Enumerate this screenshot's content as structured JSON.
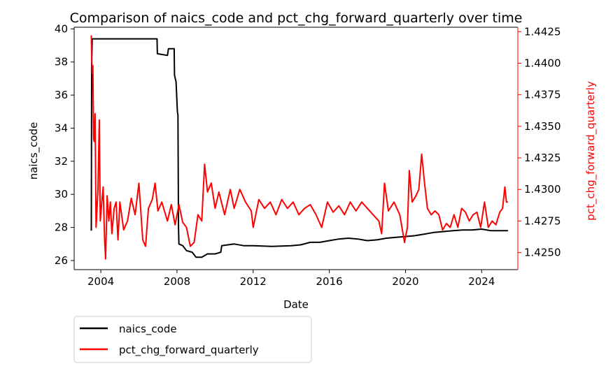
{
  "chart_data": {
    "type": "line",
    "title": "Comparison of naics_code and pct_chg_forward_quarterly over time",
    "xlabel": "Date",
    "ylabel": "naics_code",
    "y2label": "pct_chg_forward_quarterly",
    "xlim": [
      2002.6,
      2025.9
    ],
    "ylim": [
      25.45,
      40.1
    ],
    "y2lim": [
      1.42365,
      1.44285
    ],
    "x_ticks": [
      2004,
      2008,
      2012,
      2016,
      2020,
      2024
    ],
    "x_tick_labels": [
      "2004",
      "2008",
      "2012",
      "2016",
      "2020",
      "2024"
    ],
    "y_ticks": [
      26,
      28,
      30,
      32,
      34,
      36,
      38,
      40
    ],
    "y_tick_labels": [
      "26",
      "28",
      "30",
      "32",
      "34",
      "36",
      "38",
      "40"
    ],
    "y2_ticks": [
      1.425,
      1.4275,
      1.43,
      1.4325,
      1.435,
      1.4375,
      1.44,
      1.4425
    ],
    "y2_tick_labels": [
      "1.4250",
      "1.4275",
      "1.4300",
      "1.4325",
      "1.4350",
      "1.4375",
      "1.4400",
      "1.4425"
    ],
    "grid": false,
    "legend_position": "below-left",
    "series": [
      {
        "name": "naics_code",
        "color": "#000000",
        "axis": "left",
        "points": [
          [
            2003.5,
            27.8
          ],
          [
            2003.52,
            37.8
          ],
          [
            2003.55,
            39.4
          ],
          [
            2006.95,
            39.4
          ],
          [
            2006.97,
            38.5
          ],
          [
            2007.5,
            38.4
          ],
          [
            2007.55,
            38.8
          ],
          [
            2007.85,
            38.8
          ],
          [
            2007.87,
            37.2
          ],
          [
            2007.95,
            36.8
          ],
          [
            2008.02,
            35.0
          ],
          [
            2008.05,
            34.8
          ],
          [
            2008.08,
            28.0
          ],
          [
            2008.1,
            27.0
          ],
          [
            2008.3,
            26.9
          ],
          [
            2008.5,
            26.6
          ],
          [
            2008.8,
            26.5
          ],
          [
            2009.0,
            26.2
          ],
          [
            2009.3,
            26.2
          ],
          [
            2009.6,
            26.4
          ],
          [
            2010.0,
            26.4
          ],
          [
            2010.3,
            26.5
          ],
          [
            2010.35,
            26.9
          ],
          [
            2011.0,
            27.0
          ],
          [
            2011.5,
            26.9
          ],
          [
            2012.0,
            26.9
          ],
          [
            2013.0,
            26.85
          ],
          [
            2014.0,
            26.9
          ],
          [
            2014.5,
            26.95
          ],
          [
            2015.0,
            27.1
          ],
          [
            2015.5,
            27.1
          ],
          [
            2016.0,
            27.2
          ],
          [
            2016.5,
            27.3
          ],
          [
            2017.0,
            27.35
          ],
          [
            2017.5,
            27.3
          ],
          [
            2018.0,
            27.2
          ],
          [
            2018.5,
            27.25
          ],
          [
            2019.0,
            27.35
          ],
          [
            2019.5,
            27.4
          ],
          [
            2020.0,
            27.45
          ],
          [
            2020.5,
            27.5
          ],
          [
            2021.0,
            27.6
          ],
          [
            2021.5,
            27.7
          ],
          [
            2022.0,
            27.75
          ],
          [
            2022.5,
            27.8
          ],
          [
            2023.0,
            27.85
          ],
          [
            2023.5,
            27.85
          ],
          [
            2024.0,
            27.9
          ],
          [
            2024.5,
            27.8
          ],
          [
            2025.0,
            27.8
          ],
          [
            2025.38,
            27.8
          ]
        ]
      },
      {
        "name": "pct_chg_forward_quarterly",
        "color": "#ff0000",
        "axis": "right",
        "points": [
          [
            2003.5,
            1.4422
          ],
          [
            2003.52,
            1.4405
          ],
          [
            2003.55,
            1.4392
          ],
          [
            2003.58,
            1.4398
          ],
          [
            2003.62,
            1.434
          ],
          [
            2003.65,
            1.4338
          ],
          [
            2003.7,
            1.436
          ],
          [
            2003.75,
            1.427
          ],
          [
            2003.85,
            1.43
          ],
          [
            2003.92,
            1.4355
          ],
          [
            2003.97,
            1.4275
          ],
          [
            2004.05,
            1.429
          ],
          [
            2004.12,
            1.4302
          ],
          [
            2004.2,
            1.426
          ],
          [
            2004.25,
            1.4245
          ],
          [
            2004.33,
            1.4295
          ],
          [
            2004.42,
            1.4275
          ],
          [
            2004.5,
            1.429
          ],
          [
            2004.58,
            1.4265
          ],
          [
            2004.7,
            1.4285
          ],
          [
            2004.8,
            1.429
          ],
          [
            2004.9,
            1.426
          ],
          [
            2005.0,
            1.429
          ],
          [
            2005.2,
            1.4268
          ],
          [
            2005.4,
            1.4275
          ],
          [
            2005.6,
            1.4293
          ],
          [
            2005.8,
            1.428
          ],
          [
            2006.0,
            1.4305
          ],
          [
            2006.2,
            1.426
          ],
          [
            2006.35,
            1.4255
          ],
          [
            2006.5,
            1.4285
          ],
          [
            2006.7,
            1.4292
          ],
          [
            2006.85,
            1.4305
          ],
          [
            2007.0,
            1.4283
          ],
          [
            2007.2,
            1.429
          ],
          [
            2007.5,
            1.4275
          ],
          [
            2007.7,
            1.4288
          ],
          [
            2007.9,
            1.4272
          ],
          [
            2008.1,
            1.4288
          ],
          [
            2008.3,
            1.4274
          ],
          [
            2008.5,
            1.427
          ],
          [
            2008.7,
            1.4255
          ],
          [
            2008.9,
            1.4258
          ],
          [
            2009.1,
            1.428
          ],
          [
            2009.3,
            1.4275
          ],
          [
            2009.45,
            1.432
          ],
          [
            2009.6,
            1.4298
          ],
          [
            2009.8,
            1.4305
          ],
          [
            2010.0,
            1.4285
          ],
          [
            2010.2,
            1.4298
          ],
          [
            2010.5,
            1.428
          ],
          [
            2010.8,
            1.43
          ],
          [
            2011.0,
            1.4285
          ],
          [
            2011.3,
            1.43
          ],
          [
            2011.6,
            1.429
          ],
          [
            2011.9,
            1.4283
          ],
          [
            2012.0,
            1.427
          ],
          [
            2012.3,
            1.4292
          ],
          [
            2012.6,
            1.4285
          ],
          [
            2012.9,
            1.429
          ],
          [
            2013.2,
            1.428
          ],
          [
            2013.5,
            1.4292
          ],
          [
            2013.8,
            1.4285
          ],
          [
            2014.1,
            1.429
          ],
          [
            2014.4,
            1.428
          ],
          [
            2014.7,
            1.4285
          ],
          [
            2015.0,
            1.4288
          ],
          [
            2015.3,
            1.428
          ],
          [
            2015.6,
            1.427
          ],
          [
            2015.9,
            1.429
          ],
          [
            2016.2,
            1.4282
          ],
          [
            2016.5,
            1.4287
          ],
          [
            2016.8,
            1.428
          ],
          [
            2017.1,
            1.429
          ],
          [
            2017.4,
            1.4283
          ],
          [
            2017.7,
            1.429
          ],
          [
            2018.0,
            1.4285
          ],
          [
            2018.3,
            1.428
          ],
          [
            2018.6,
            1.4275
          ],
          [
            2018.75,
            1.4265
          ],
          [
            2018.9,
            1.4305
          ],
          [
            2019.1,
            1.4283
          ],
          [
            2019.4,
            1.429
          ],
          [
            2019.7,
            1.428
          ],
          [
            2019.95,
            1.4258
          ],
          [
            2020.1,
            1.427
          ],
          [
            2020.2,
            1.4315
          ],
          [
            2020.35,
            1.429
          ],
          [
            2020.55,
            1.4295
          ],
          [
            2020.7,
            1.43
          ],
          [
            2020.85,
            1.4328
          ],
          [
            2021.0,
            1.4305
          ],
          [
            2021.15,
            1.4285
          ],
          [
            2021.35,
            1.428
          ],
          [
            2021.55,
            1.4283
          ],
          [
            2021.75,
            1.428
          ],
          [
            2021.95,
            1.4268
          ],
          [
            2022.15,
            1.4273
          ],
          [
            2022.35,
            1.427
          ],
          [
            2022.55,
            1.428
          ],
          [
            2022.75,
            1.427
          ],
          [
            2022.95,
            1.4285
          ],
          [
            2023.15,
            1.4282
          ],
          [
            2023.35,
            1.4275
          ],
          [
            2023.55,
            1.428
          ],
          [
            2023.75,
            1.4282
          ],
          [
            2023.95,
            1.427
          ],
          [
            2024.15,
            1.429
          ],
          [
            2024.35,
            1.427
          ],
          [
            2024.55,
            1.4275
          ],
          [
            2024.75,
            1.4272
          ],
          [
            2024.95,
            1.4282
          ],
          [
            2025.1,
            1.4285
          ],
          [
            2025.22,
            1.4302
          ],
          [
            2025.3,
            1.429
          ],
          [
            2025.38,
            1.429
          ]
        ]
      }
    ]
  }
}
